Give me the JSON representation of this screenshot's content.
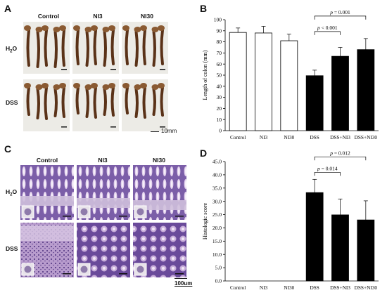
{
  "panelA": {
    "letter": "A",
    "col_headers": [
      "Control",
      "NI3",
      "NI30"
    ],
    "row_headers": [
      "H",
      "DSS"
    ],
    "row_h2o_sub": "2",
    "row_h2o_tail": "O",
    "scale_label": "10mm",
    "colors": {
      "background": "#ecebe6",
      "tissue": "#5a3218",
      "tissue_light": "#8a5a32"
    }
  },
  "panelB": {
    "letter": "B"
  },
  "panelC": {
    "letter": "C",
    "col_headers": [
      "Control",
      "NI3",
      "NI30"
    ],
    "row_headers": [
      "H",
      "DSS"
    ],
    "row_h2o_sub": "2",
    "row_h2o_tail": "O",
    "scale_label": "100um",
    "colors": {
      "stain_dark": "#5b3f8f",
      "stain_light": "#d9c2e3",
      "stain_mid": "#9c7dbf"
    }
  },
  "panelD": {
    "letter": "D"
  },
  "chart_data": [
    {
      "type": "bar",
      "categories": [
        "Control",
        "NI3",
        "NI30",
        "DSS",
        "DSS+NI3",
        "DSS+NI30"
      ],
      "values": [
        88.5,
        88,
        81,
        49.5,
        67,
        73
      ],
      "errors": [
        4,
        6,
        6,
        5,
        8,
        10
      ],
      "bar_fill": [
        "#ffffff",
        "#ffffff",
        "#ffffff",
        "#000000",
        "#000000",
        "#000000"
      ],
      "ylabel": "Length of colon (mm)",
      "ylim": [
        0,
        100
      ],
      "ystep": 10,
      "ytick_labels": [
        "0",
        "10",
        "20",
        "30",
        "40",
        "50",
        "60",
        "70",
        "80",
        "90",
        "100"
      ],
      "significance": [
        {
          "from": "DSS",
          "to": "DSS+NI3",
          "label": "p < 0.001"
        },
        {
          "from": "DSS",
          "to": "DSS+NI30",
          "label": "p = 0.001"
        }
      ]
    },
    {
      "type": "bar",
      "categories": [
        "Control",
        "NI3",
        "NI30",
        "DSS",
        "DSS+NI3",
        "DSS+NI30"
      ],
      "values": [
        0,
        0,
        0,
        33.3,
        24.9,
        23
      ],
      "errors": [
        0,
        0,
        0,
        5,
        6,
        7.2
      ],
      "bar_fill": [
        "#000000",
        "#000000",
        "#000000",
        "#000000",
        "#000000",
        "#000000"
      ],
      "ylabel": "Histologic score",
      "ylim": [
        0,
        45
      ],
      "ystep": 5,
      "ytick_labels": [
        "0.0",
        "5.0",
        "10.0",
        "15.0",
        "20.0",
        "25.0",
        "30.0",
        "35.0",
        "40.0",
        "45.0"
      ],
      "significance": [
        {
          "from": "DSS",
          "to": "DSS+NI3",
          "label": "p = 0.014"
        },
        {
          "from": "DSS",
          "to": "DSS+NI30",
          "label": "p = 0.012"
        }
      ]
    }
  ]
}
